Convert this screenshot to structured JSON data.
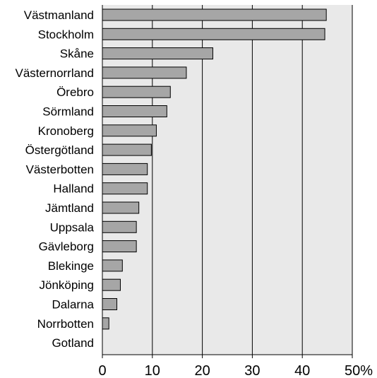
{
  "chart_data": {
    "type": "bar",
    "orientation": "horizontal",
    "categories": [
      "Västmanland",
      "Stockholm",
      "Skåne",
      "Västernorrland",
      "Örebro",
      "Sörmland",
      "Kronoberg",
      "Östergötland",
      "Västerbotten",
      "Halland",
      "Jämtland",
      "Uppsala",
      "Gävleborg",
      "Blekinge",
      "Jönköping",
      "Dalarna",
      "Norrbotten",
      "Gotland"
    ],
    "values": [
      44.8,
      44.5,
      22.1,
      16.8,
      13.6,
      12.9,
      10.8,
      9.8,
      9.0,
      9.0,
      7.3,
      6.8,
      6.8,
      4.0,
      3.6,
      2.9,
      1.3,
      0
    ],
    "xlim": [
      0,
      50
    ],
    "xticks": [
      "0",
      "10",
      "20",
      "30",
      "40",
      "50%"
    ],
    "grid": true,
    "colors": {
      "bar_fill": "#a6a6a6",
      "bar_stroke": "#000000",
      "plot_background": "#e9e9e9",
      "gridline": "#000000",
      "text": "#000000"
    }
  }
}
